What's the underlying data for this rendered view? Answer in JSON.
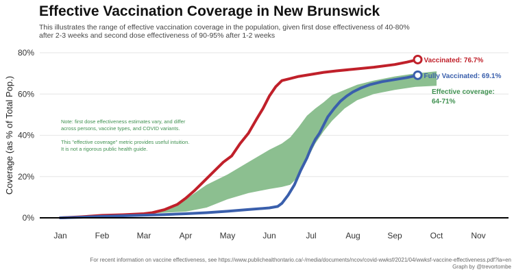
{
  "title": "Effective Vaccination Coverage in New Brunswick",
  "subtitle": "This illustrates the range of effective vaccination coverage in the population, given first dose effectiveness of 40-80% after 2-3 weeks and second dose effectiveness of 90-95% after 1-2 weeks",
  "caption": {
    "line1": "For recent information on vaccine effectiveness, see https://www.publichealthontario.ca/-/media/documents/ncov/covid-wwksf/2021/04/wwksf-vaccine-effectiveness.pdf?la=en",
    "line2": "Graph by @trevortombe"
  },
  "colors": {
    "vaccinated": "#c0202a",
    "fully_vaccinated": "#3a5fac",
    "effective_band": "#8cbf90",
    "effective_text": "#3f9150",
    "note_text": "#3f9150",
    "axis": "#000000",
    "grid": "#e6e6e6"
  },
  "chart_data": {
    "type": "line",
    "title": "Effective Vaccination Coverage in New Brunswick",
    "xlabel": "",
    "ylabel": "Coverage (as % of Total Pop.)",
    "ylim": [
      0,
      80
    ],
    "yticks": [
      0,
      20,
      40,
      60,
      80
    ],
    "ytick_labels": [
      "0%",
      "20%",
      "40%",
      "60%",
      "80%"
    ],
    "xlim": [
      0,
      10.75
    ],
    "xticks": [
      0,
      1,
      2,
      3,
      4,
      5,
      6,
      7,
      8,
      9,
      10
    ],
    "xtick_labels": [
      "Jan",
      "Feb",
      "Mar",
      "Apr",
      "May",
      "Jun",
      "Jul",
      "Aug",
      "Sep",
      "Oct",
      "Nov"
    ],
    "grid": true,
    "series": [
      {
        "name": "Vaccinated",
        "x": [
          0,
          0.5,
          1,
          1.5,
          2,
          2.2,
          2.5,
          2.8,
          3.0,
          3.2,
          3.4,
          3.7,
          3.9,
          4.1,
          4.3,
          4.5,
          4.7,
          4.85,
          5.0,
          5.15,
          5.3,
          5.5,
          5.7,
          6.0,
          6.3,
          6.6,
          7.0,
          7.5,
          8.0,
          8.3,
          8.55
        ],
        "y": [
          0,
          0.5,
          1.2,
          1.5,
          2,
          2.5,
          4,
          6.5,
          9.5,
          13,
          17,
          23,
          27,
          30,
          36,
          41,
          48,
          53,
          59,
          63.5,
          66.5,
          67.5,
          68.5,
          69.5,
          70.5,
          71.2,
          72,
          73,
          74.3,
          75.5,
          76.7
        ]
      },
      {
        "name": "Fully Vaccinated",
        "x": [
          0,
          0.5,
          1,
          1.5,
          2,
          2.5,
          3,
          3.5,
          4,
          4.5,
          5,
          5.2,
          5.3,
          5.45,
          5.6,
          5.75,
          5.9,
          6.0,
          6.1,
          6.2,
          6.3,
          6.4,
          6.55,
          6.7,
          6.85,
          7.0,
          7.2,
          7.4,
          7.7,
          8.0,
          8.3,
          8.55
        ],
        "y": [
          0,
          0.3,
          0.7,
          1.0,
          1.3,
          1.6,
          2,
          2.5,
          3.2,
          4,
          4.8,
          5.5,
          7,
          11,
          16,
          23,
          29,
          34,
          38,
          41,
          45,
          49,
          53,
          56.5,
          59,
          61,
          63,
          64.5,
          66,
          67,
          68,
          69.1
        ]
      }
    ],
    "band": {
      "name": "Effective coverage",
      "x": [
        2.0,
        2.5,
        3.0,
        3.5,
        4.0,
        4.5,
        5.0,
        5.3,
        5.5,
        5.7,
        5.9,
        6.1,
        6.3,
        6.5,
        6.8,
        7.1,
        7.5,
        8.0,
        8.5,
        9.0
      ],
      "low": [
        2,
        2.5,
        3,
        5,
        9,
        12,
        14,
        15,
        16,
        20,
        28,
        36,
        42,
        47,
        53,
        57,
        60,
        62,
        63.5,
        64
      ],
      "high": [
        2,
        4,
        9,
        16,
        21,
        27,
        33,
        36,
        39,
        44,
        49.5,
        53,
        56,
        59.5,
        62,
        64.5,
        66.5,
        68.5,
        70,
        71
      ]
    },
    "annotations": {
      "vaccinated_label": "Vaccinated: 76.7%",
      "fully_label": "Fully Vaccinated: 69.1%",
      "effective_label_line1": "Effective coverage:",
      "effective_label_line2": "64-71%",
      "note_lines": [
        "Note: first dose effectiveness estimates vary, and differ",
        "across persons, vaccine types, and COVID variants.",
        "",
        "This \"effective coverage\" metric provides useful intuition.",
        "It is not a rigorous public health guide."
      ]
    }
  }
}
